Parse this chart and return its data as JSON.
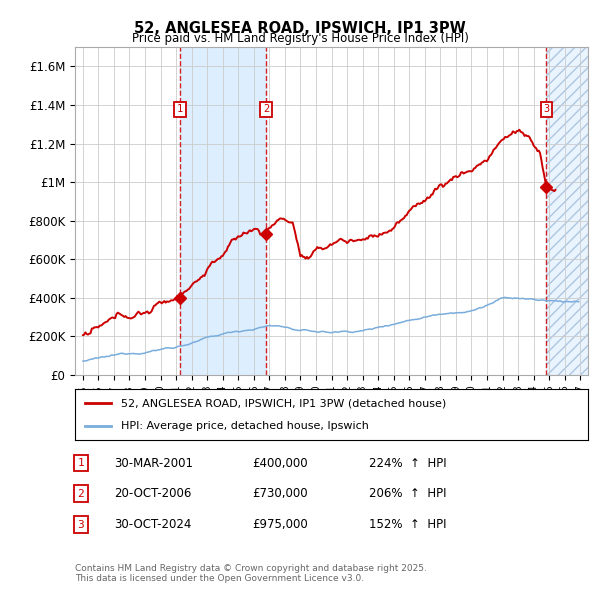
{
  "title_line1": "52, ANGLESEA ROAD, IPSWICH, IP1 3PW",
  "title_line2": "Price paid vs. HM Land Registry's House Price Index (HPI)",
  "background_color": "#ffffff",
  "plot_bg_color": "#ffffff",
  "grid_color": "#cccccc",
  "hpi_line_color": "#7aaddc",
  "price_line_color": "#cc0000",
  "transactions": [
    {
      "num": 1,
      "date_dec": 2001.25,
      "price": 400000,
      "label": "30-MAR-2001",
      "pct": "224%",
      "dir": "↑"
    },
    {
      "num": 2,
      "date_dec": 2006.8,
      "price": 730000,
      "label": "20-OCT-2006",
      "pct": "206%",
      "dir": "↑"
    },
    {
      "num": 3,
      "date_dec": 2024.83,
      "price": 975000,
      "label": "30-OCT-2024",
      "pct": "152%",
      "dir": "↑"
    }
  ],
  "ylim": [
    0,
    1700000
  ],
  "xlim_start": 1994.5,
  "xlim_end": 2027.5,
  "yticks": [
    0,
    200000,
    400000,
    600000,
    800000,
    1000000,
    1200000,
    1400000,
    1600000
  ],
  "ytick_labels": [
    "£0",
    "£200K",
    "£400K",
    "£600K",
    "£800K",
    "£1M",
    "£1.2M",
    "£1.4M",
    "£1.6M"
  ],
  "xticks": [
    1995,
    1996,
    1997,
    1998,
    1999,
    2000,
    2001,
    2002,
    2003,
    2004,
    2005,
    2006,
    2007,
    2008,
    2009,
    2010,
    2011,
    2012,
    2013,
    2014,
    2015,
    2016,
    2017,
    2018,
    2019,
    2020,
    2021,
    2022,
    2023,
    2024,
    2025,
    2026,
    2027
  ],
  "legend_label1": "52, ANGLESEA ROAD, IPSWICH, IP1 3PW (detached house)",
  "legend_label2": "HPI: Average price, detached house, Ipswich",
  "footer": "Contains HM Land Registry data © Crown copyright and database right 2025.\nThis data is licensed under the Open Government Licence v3.0.",
  "shaded_region_color": "#ddeeff",
  "hatch_color": "#aec6df"
}
